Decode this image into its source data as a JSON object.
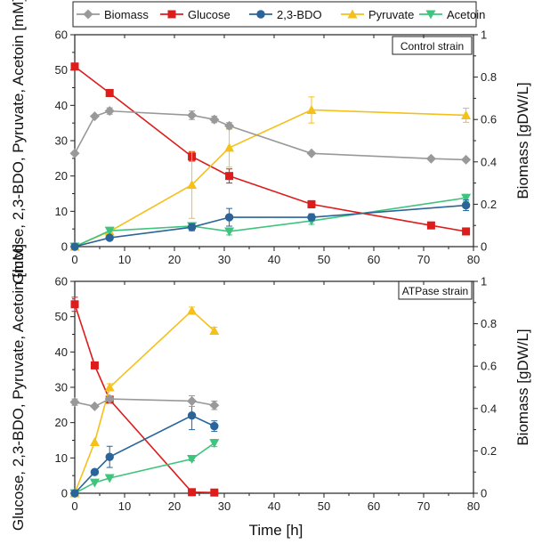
{
  "legend": [
    {
      "name": "Biomass",
      "color": "#999999",
      "marker": "diamond"
    },
    {
      "name": "Glucose",
      "color": "#dd1c1c",
      "marker": "square"
    },
    {
      "name": "2,3-BDO",
      "color": "#2a6499",
      "marker": "circle"
    },
    {
      "name": "Pyruvate",
      "color": "#f5c019",
      "marker": "triangle-up"
    },
    {
      "name": "Acetoin",
      "color": "#3ec47c",
      "marker": "triangle-down"
    }
  ],
  "shared_x_label": "Time [h]",
  "chart_data": [
    {
      "type": "line",
      "label": "Control strain",
      "ylabel": "Glucose, 2,3-BDO, Pyruvate, Acetoin [mM]",
      "y2label": "Biomass [gDW/L]",
      "xlim": [
        0,
        80
      ],
      "ylim": [
        0,
        60
      ],
      "y2lim": [
        0,
        1
      ],
      "xticks": [
        "0",
        "10",
        "20",
        "30",
        "40",
        "50",
        "60",
        "70",
        "80"
      ],
      "yticks": [
        "0",
        "10",
        "20",
        "30",
        "40",
        "50",
        "60"
      ],
      "y2ticks": [
        "0",
        "0.2",
        "0.4",
        "0.6",
        "0.8",
        "1"
      ],
      "series": [
        {
          "name": "Biomass",
          "axis": "right",
          "x": [
            0,
            4,
            7,
            23.5,
            28,
            31,
            47.5,
            71.5,
            78.5
          ],
          "y": [
            0.44,
            0.615,
            0.64,
            0.62,
            0.6,
            0.57,
            0.44,
            0.415,
            0.41
          ],
          "err": [
            0,
            0,
            0.015,
            0.02,
            0.015,
            0.015,
            0,
            0,
            0
          ]
        },
        {
          "name": "Glucose",
          "axis": "left",
          "x": [
            0,
            7,
            23.5,
            31,
            47.5,
            71.5,
            78.5
          ],
          "y": [
            51,
            43.5,
            25.5,
            20,
            12,
            6,
            4.3
          ],
          "err": [
            0.6,
            1,
            1.3,
            2,
            1,
            0,
            0
          ]
        },
        {
          "name": "2,3-BDO",
          "axis": "left",
          "x": [
            0,
            7,
            23.5,
            31,
            47.5,
            78.5
          ],
          "y": [
            0,
            2.5,
            5.5,
            8.3,
            8.3,
            11.7
          ],
          "err": [
            0,
            0,
            1,
            2.5,
            1,
            1.5
          ]
        },
        {
          "name": "Pyruvate",
          "axis": "left",
          "x": [
            0,
            7,
            23.5,
            31,
            47.5,
            78.5
          ],
          "y": [
            0,
            4.3,
            17.5,
            28,
            38.7,
            37.2
          ],
          "err": [
            0,
            0,
            9.5,
            5.5,
            3.7,
            2
          ]
        },
        {
          "name": "Acetoin",
          "axis": "left",
          "x": [
            0,
            7,
            23.5,
            31,
            47.5,
            78.5
          ],
          "y": [
            0,
            4.5,
            5.8,
            4.3,
            7.3,
            13.8
          ],
          "err": [
            0,
            0,
            1,
            1,
            1,
            1
          ]
        }
      ]
    },
    {
      "type": "line",
      "label": "ATPase strain",
      "ylabel": "Glucose, 2,3-BDO, Pyruvate, Acetoin [mM]",
      "y2label": "Biomass [gDW/L]",
      "xlabel": "Time [h]",
      "xlim": [
        0,
        80
      ],
      "ylim": [
        0,
        60
      ],
      "y2lim": [
        0,
        1
      ],
      "xticks": [
        "0",
        "10",
        "20",
        "30",
        "40",
        "50",
        "60",
        "70",
        "80"
      ],
      "yticks": [
        "0",
        "10",
        "20",
        "30",
        "40",
        "50",
        "60"
      ],
      "y2ticks": [
        "0",
        "0.2",
        "0.4",
        "0.6",
        "0.8",
        "1"
      ],
      "series": [
        {
          "name": "Biomass",
          "axis": "right",
          "x": [
            0,
            4,
            7,
            23.5,
            28
          ],
          "y": [
            0.43,
            0.41,
            0.445,
            0.435,
            0.415
          ],
          "err": [
            0.015,
            0,
            0.01,
            0.025,
            0.02
          ]
        },
        {
          "name": "Glucose",
          "axis": "left",
          "x": [
            0,
            4,
            7,
            23.5,
            28
          ],
          "y": [
            53.5,
            36.2,
            26.5,
            0.3,
            0.2
          ],
          "err": [
            2,
            0,
            0,
            0,
            0
          ]
        },
        {
          "name": "2,3-BDO",
          "axis": "left",
          "x": [
            0,
            4,
            7,
            23.5,
            28
          ],
          "y": [
            0,
            6,
            10.3,
            22,
            19
          ],
          "err": [
            0,
            0,
            3,
            4,
            1.5
          ]
        },
        {
          "name": "Pyruvate",
          "axis": "left",
          "x": [
            0,
            4,
            7,
            23.5,
            28
          ],
          "y": [
            0,
            14.5,
            30,
            51.7,
            46
          ],
          "err": [
            0,
            0,
            1,
            1,
            1
          ]
        },
        {
          "name": "Acetoin",
          "axis": "left",
          "x": [
            0,
            4,
            7,
            23.5,
            28
          ],
          "y": [
            0,
            3,
            4.3,
            9.7,
            14.2
          ],
          "err": [
            0,
            0,
            0,
            0.5,
            1
          ]
        }
      ]
    }
  ]
}
